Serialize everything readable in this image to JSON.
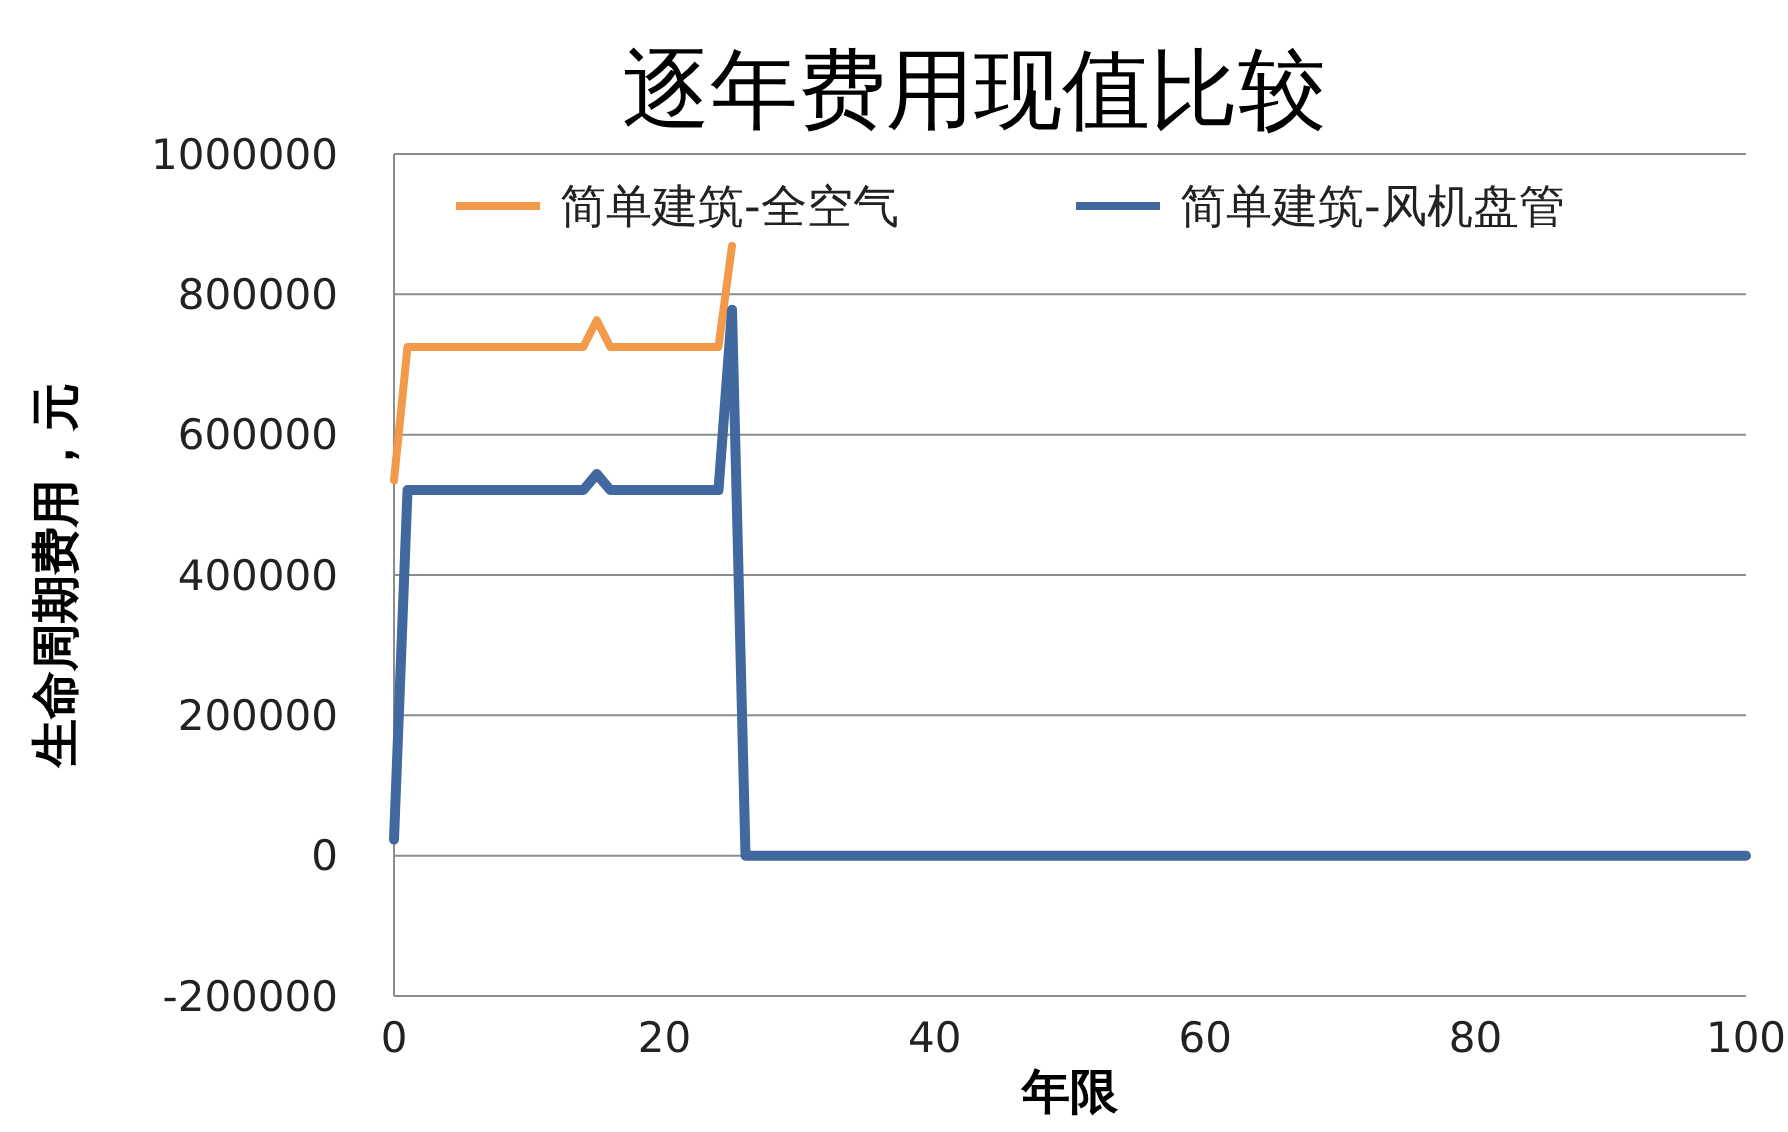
{
  "chart_data": {
    "type": "line",
    "title": "逐年费用现值比较",
    "xlabel": "年限",
    "ylabel": "生命周期费用，元",
    "xlim": [
      0,
      100
    ],
    "xticks": [
      0,
      20,
      40,
      60,
      80,
      100
    ],
    "ylim": [
      -200000,
      1000000
    ],
    "yticks": [
      -200000,
      0,
      200000,
      400000,
      600000,
      800000,
      1000000
    ],
    "grid": "y",
    "legend": "top",
    "marker": "none",
    "line_style": "solid",
    "series": [
      {
        "name": "简单建筑-全空气",
        "color": "#f29a4a",
        "x": [
          0,
          1,
          14,
          15,
          16,
          24,
          25
        ],
        "values": [
          535000,
          725000,
          725000,
          763000,
          725000,
          725000,
          869000
        ]
      },
      {
        "name": "简单建筑-风机盘管",
        "color": "#41689f",
        "x": [
          0,
          1,
          14,
          15,
          16,
          24,
          25,
          26,
          100
        ],
        "values": [
          23000,
          521000,
          521000,
          544000,
          521000,
          521000,
          778000,
          0,
          0
        ]
      }
    ]
  }
}
